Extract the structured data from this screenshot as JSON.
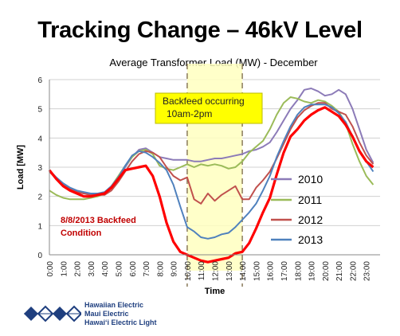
{
  "slide": {
    "title": "Tracking Change – 46kV Level",
    "logo_lines": [
      "Hawaiian Electric",
      "Maui Electric",
      "Hawai‘i Electric Light"
    ]
  },
  "chart_data": {
    "type": "line",
    "title": "Average Transformer Load (MW) - December",
    "xlabel": "Time",
    "ylabel": "Load [MW]",
    "ylim": [
      0,
      6
    ],
    "yticks": [
      0,
      1,
      2,
      3,
      4,
      5,
      6
    ],
    "grid": true,
    "legend": "right",
    "categories": [
      "0:00",
      "1:00",
      "2:00",
      "3:00",
      "4:00",
      "5:00",
      "6:00",
      "7:00",
      "8:00",
      "9:00",
      "10:00",
      "11:00",
      "12:00",
      "13:00",
      "14:00",
      "15:00",
      "16:00",
      "17:00",
      "18:00",
      "19:00",
      "20:00",
      "21:00",
      "22:00",
      "23:00"
    ],
    "x": [
      0,
      0.5,
      1,
      1.5,
      2,
      2.5,
      3,
      3.5,
      4,
      4.5,
      5,
      5.5,
      6,
      6.5,
      7,
      7.5,
      8,
      8.5,
      9,
      9.5,
      10,
      10.5,
      11,
      11.5,
      12,
      12.5,
      13,
      13.5,
      14,
      14.5,
      15,
      15.5,
      16,
      16.5,
      17,
      17.5,
      18,
      18.5,
      19,
      19.5,
      20,
      20.5,
      21,
      21.5,
      22,
      22.5,
      23,
      23.5
    ],
    "series": [
      {
        "name": "2010",
        "color": "#8c7bb8",
        "values": [
          2.9,
          2.6,
          2.4,
          2.25,
          2.15,
          2.1,
          2.05,
          2.05,
          2.1,
          2.3,
          2.6,
          3.0,
          3.35,
          3.6,
          3.65,
          3.5,
          3.35,
          3.3,
          3.25,
          3.25,
          3.25,
          3.2,
          3.2,
          3.25,
          3.3,
          3.3,
          3.35,
          3.4,
          3.45,
          3.55,
          3.6,
          3.7,
          3.85,
          4.2,
          4.6,
          5.0,
          5.3,
          5.65,
          5.7,
          5.6,
          5.45,
          5.5,
          5.65,
          5.5,
          5.0,
          4.3,
          3.6,
          3.15
        ]
      },
      {
        "name": "2011",
        "color": "#9bbb59",
        "values": [
          2.2,
          2.05,
          1.95,
          1.9,
          1.9,
          1.9,
          1.95,
          2.0,
          2.1,
          2.35,
          2.7,
          3.05,
          3.35,
          3.55,
          3.6,
          3.45,
          3.05,
          2.95,
          2.9,
          3.0,
          3.1,
          3.0,
          3.1,
          3.05,
          3.1,
          3.05,
          2.95,
          3.0,
          3.2,
          3.5,
          3.7,
          3.9,
          4.3,
          4.8,
          5.2,
          5.4,
          5.35,
          5.25,
          5.2,
          5.3,
          5.25,
          5.1,
          4.9,
          4.5,
          3.8,
          3.2,
          2.7,
          2.4
        ]
      },
      {
        "name": "2012",
        "color": "#c0504d",
        "values": [
          2.85,
          2.6,
          2.4,
          2.25,
          2.15,
          2.1,
          2.05,
          2.05,
          2.05,
          2.2,
          2.5,
          2.85,
          3.2,
          3.45,
          3.55,
          3.5,
          3.35,
          3.0,
          2.7,
          2.55,
          2.65,
          1.9,
          1.75,
          2.1,
          1.85,
          2.05,
          2.2,
          2.35,
          1.9,
          1.9,
          2.3,
          2.55,
          2.85,
          3.3,
          3.8,
          4.3,
          4.7,
          4.95,
          5.1,
          5.2,
          5.2,
          5.0,
          4.9,
          4.8,
          4.4,
          3.85,
          3.4,
          3.1
        ]
      },
      {
        "name": "2013",
        "color": "#4f81bd",
        "values": [
          2.9,
          2.65,
          2.45,
          2.3,
          2.2,
          2.15,
          2.1,
          2.1,
          2.15,
          2.35,
          2.65,
          3.05,
          3.4,
          3.55,
          3.5,
          3.35,
          3.15,
          2.9,
          2.4,
          1.65,
          0.95,
          0.8,
          0.6,
          0.55,
          0.6,
          0.7,
          0.75,
          0.95,
          1.2,
          1.45,
          1.75,
          2.2,
          2.7,
          3.35,
          3.9,
          4.4,
          4.8,
          5.05,
          5.15,
          5.15,
          5.15,
          5.05,
          4.85,
          4.55,
          4.05,
          3.55,
          3.2,
          2.85
        ]
      },
      {
        "name": "8/8/2013 Backfeed Condition",
        "color": "#ff0000",
        "values": [
          2.9,
          2.6,
          2.35,
          2.2,
          2.1,
          2.0,
          2.0,
          2.05,
          2.1,
          2.3,
          2.6,
          2.9,
          2.95,
          3.0,
          3.05,
          2.7,
          2.0,
          1.1,
          0.45,
          0.1,
          0.0,
          -0.1,
          -0.2,
          -0.25,
          -0.2,
          -0.15,
          -0.1,
          0.05,
          0.1,
          0.4,
          0.9,
          1.45,
          1.95,
          2.75,
          3.5,
          4.05,
          4.3,
          4.6,
          4.8,
          4.95,
          5.05,
          4.9,
          4.75,
          4.45,
          4.05,
          3.55,
          3.2,
          3.0
        ]
      }
    ],
    "annotations": {
      "backfeed_box": "Backfeed occurring\n10am-2pm",
      "condition_label": "8/8/2013 Backfeed\nCondition",
      "band_start": 10,
      "band_end": 14
    }
  }
}
